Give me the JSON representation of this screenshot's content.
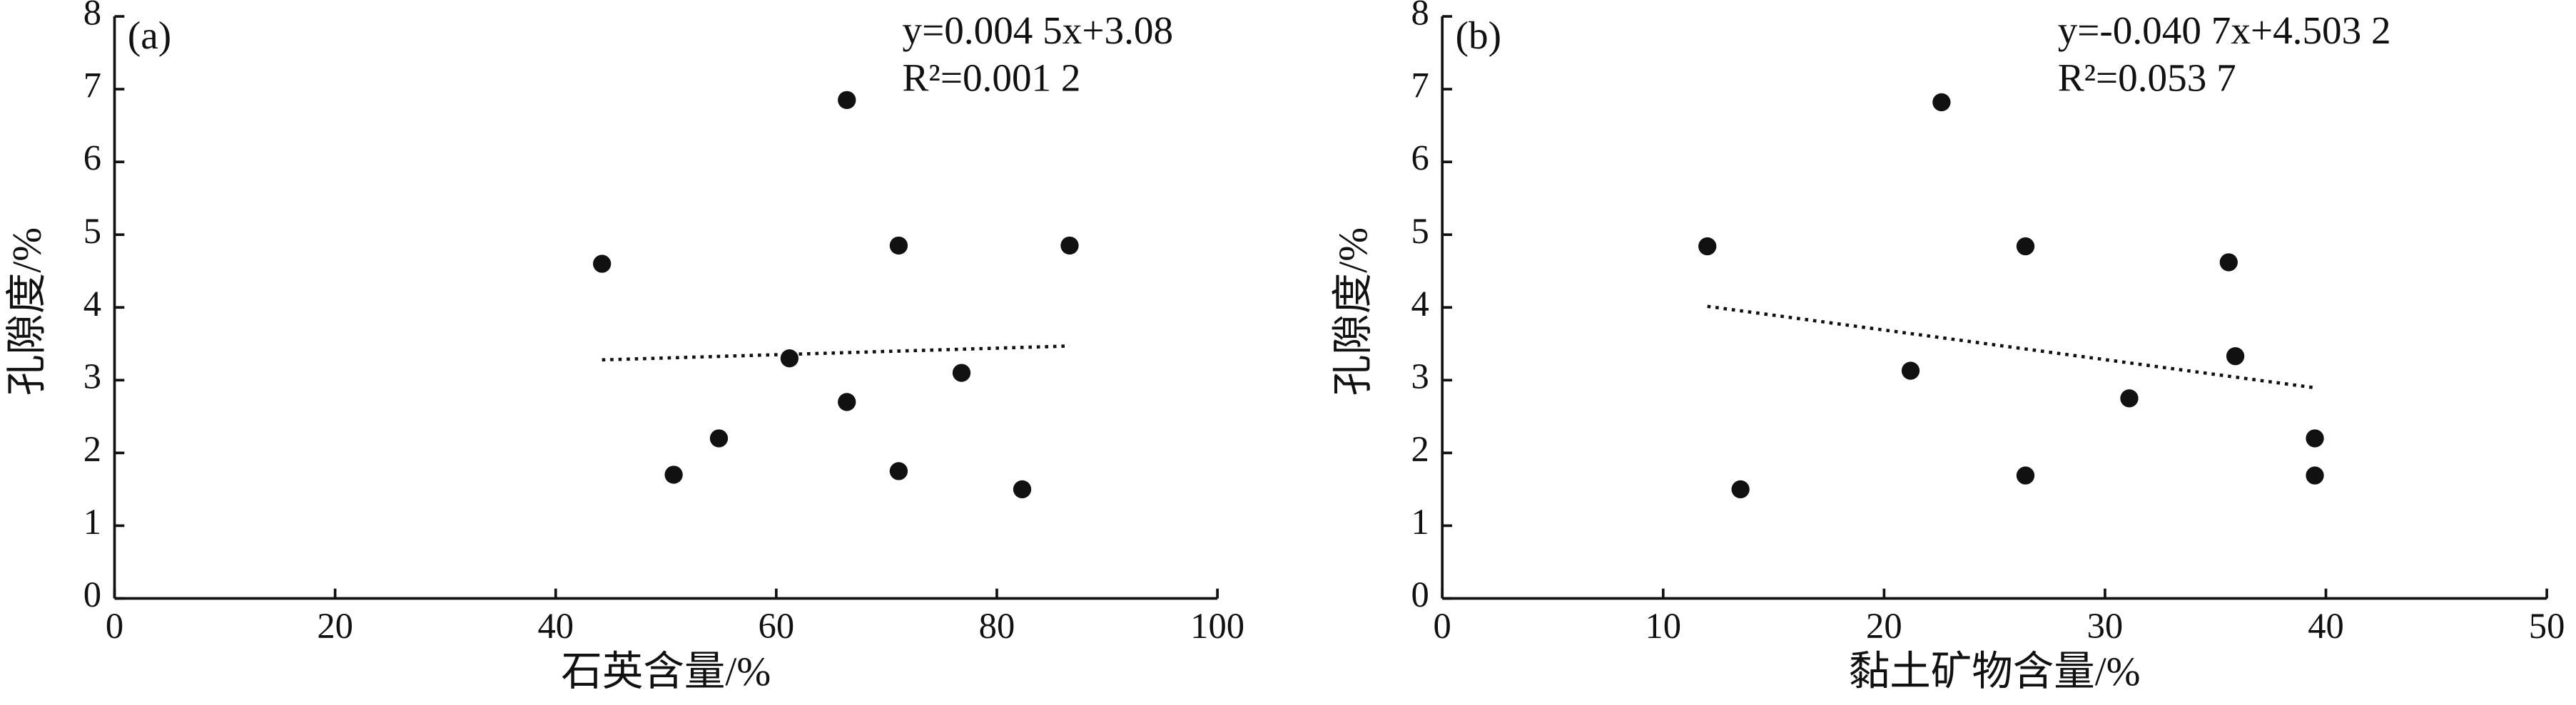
{
  "chart_data": [
    {
      "type": "scatter",
      "panel": "(a)",
      "x_label": "石英含量/%",
      "y_label": "孔隙度/%",
      "equation": "y=0.004 5x+3.08",
      "r_squared": "R²=0.001 2",
      "fit": {
        "slope": 0.0045,
        "intercept": 3.08
      },
      "x": [
        44.2,
        50.7,
        54.8,
        61.2,
        66.4,
        66.4,
        71.1,
        71.1,
        76.8,
        82.3,
        86.6
      ],
      "values": [
        4.6,
        1.7,
        2.2,
        3.3,
        6.85,
        2.7,
        4.85,
        1.75,
        3.1,
        1.5,
        4.85
      ],
      "color": "#111111",
      "xlim": [
        0,
        100
      ],
      "xticks": [
        0,
        20,
        40,
        60,
        80,
        100
      ],
      "ylim": [
        0,
        8
      ],
      "yticks": [
        0,
        1,
        2,
        3,
        4,
        5,
        6,
        7,
        8
      ]
    },
    {
      "type": "scatter",
      "panel": "(b)",
      "x_label": "黏土矿物含量/%",
      "y_label": "孔隙度/%",
      "equation": "y=-0.040 7x+4.503 2",
      "r_squared": "R²=0.053 7",
      "fit": {
        "slope": -0.0407,
        "intercept": 4.5032
      },
      "x": [
        12.0,
        13.5,
        21.2,
        22.6,
        26.4,
        26.4,
        31.1,
        35.6,
        35.9,
        39.5,
        39.5
      ],
      "values": [
        4.84,
        1.5,
        3.13,
        6.82,
        4.84,
        1.69,
        2.75,
        4.62,
        3.33,
        2.2,
        1.69
      ],
      "color": "#111111",
      "xlim": [
        0,
        50
      ],
      "xticks": [
        0,
        10,
        20,
        30,
        40,
        50
      ],
      "ylim": [
        0,
        8
      ],
      "yticks": [
        0,
        1,
        2,
        3,
        4,
        5,
        6,
        7,
        8
      ]
    }
  ]
}
